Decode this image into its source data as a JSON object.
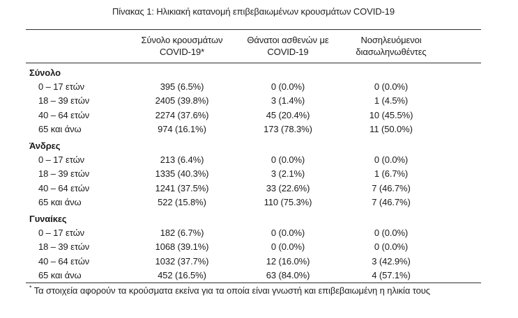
{
  "title": "Πίνακας 1: Ηλικιακή κατανομή επιβεβαιωμένων κρουσμάτων COVID-19",
  "colors": {
    "background": "#ffffff",
    "text": "#1a1a1a",
    "rule": "#2e2e2e"
  },
  "table": {
    "headers": [
      {
        "line1": "Σύνολο κρουσμάτων",
        "line2": "COVID-19*"
      },
      {
        "line1": "Θάνατοι ασθενών με",
        "line2": "COVID-19"
      },
      {
        "line1": "Νοσηλευόμενοι",
        "line2": "διασωληνωθέντες"
      }
    ],
    "sections": [
      {
        "name": "Σύνολο",
        "rows": [
          {
            "label": "0 – 17 ετών",
            "cases": "395 (6.5%)",
            "deaths": "0 (0.0%)",
            "intubated": "0 (0.0%)"
          },
          {
            "label": "18 – 39 ετών",
            "cases": "2405 (39.8%)",
            "deaths": "3 (1.4%)",
            "intubated": "1 (4.5%)"
          },
          {
            "label": "40 – 64 ετών",
            "cases": "2274 (37.6%)",
            "deaths": "45 (20.4%)",
            "intubated": "10 (45.5%)"
          },
          {
            "label": "65 και άνω",
            "cases": "974 (16.1%)",
            "deaths": "173 (78.3%)",
            "intubated": "11 (50.0%)"
          }
        ]
      },
      {
        "name": "Άνδρες",
        "rows": [
          {
            "label": "0 – 17 ετών",
            "cases": "213 (6.4%)",
            "deaths": "0 (0.0%)",
            "intubated": "0 (0.0%)"
          },
          {
            "label": "18 – 39 ετών",
            "cases": "1335 (40.3%)",
            "deaths": "3 (2.1%)",
            "intubated": "1 (6.7%)"
          },
          {
            "label": "40 – 64 ετών",
            "cases": "1241 (37.5%)",
            "deaths": "33 (22.6%)",
            "intubated": "7 (46.7%)"
          },
          {
            "label": "65 και άνω",
            "cases": "522 (15.8%)",
            "deaths": "110 (75.3%)",
            "intubated": "7 (46.7%)"
          }
        ]
      },
      {
        "name": "Γυναίκες",
        "rows": [
          {
            "label": "0 – 17 ετών",
            "cases": "182 (6.7%)",
            "deaths": "0 (0.0%)",
            "intubated": "0 (0.0%)"
          },
          {
            "label": "18 – 39 ετών",
            "cases": "1068 (39.1%)",
            "deaths": "0 (0.0%)",
            "intubated": "0 (0.0%)"
          },
          {
            "label": "40 – 64 ετών",
            "cases": "1032 (37.7%)",
            "deaths": "12 (16.0%)",
            "intubated": "3 (42.9%)"
          },
          {
            "label": "65 και άνω",
            "cases": "452 (16.5%)",
            "deaths": "63 (84.0%)",
            "intubated": "4 (57.1%)"
          }
        ]
      }
    ]
  },
  "footnote": {
    "marker": "*",
    "text": "Τα στοιχεία αφορούν τα κρούσματα εκείνα για τα οποία είναι γνωστή και επιβεβαιωμένη η ηλικία τους"
  }
}
